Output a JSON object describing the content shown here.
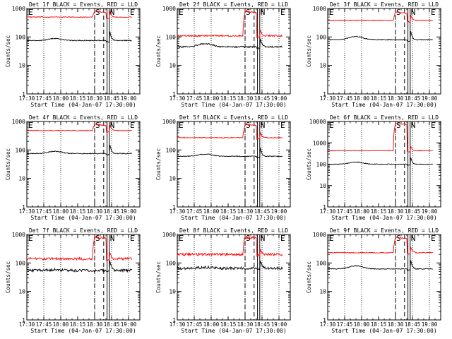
{
  "chart_data": [
    {
      "type": "line",
      "title": "Det 1f BLACK = Events, RED = LLD",
      "xlabel": "Start Time (04-Jan-07 17:30:00)",
      "ylabel": "Counts/sec",
      "yscale": "log",
      "ylim": [
        1,
        1000
      ],
      "xticks": [
        "17:30",
        "17:45",
        "18:00",
        "18:15",
        "18:30",
        "18:45",
        "19:00"
      ],
      "yticks": [
        "1",
        "10",
        "100",
        "1000"
      ],
      "markers": {
        "E_left": "E",
        "S": "S",
        "N": "N",
        "E_right": "E"
      },
      "lld_level": 500,
      "lld_flare_peak": 800,
      "events_level": 75,
      "events_bump": 18,
      "noise": "low",
      "series": [
        {
          "name": "BLACK = Events",
          "color": "#000000"
        },
        {
          "name": "RED = LLD",
          "color": "#ff0000"
        }
      ]
    },
    {
      "type": "line",
      "title": "Det 2f BLACK = Events, RED = LLD",
      "xlabel": "Start Time (04-Jan-07 17:30:00)",
      "ylabel": "Counts/sec",
      "yscale": "log",
      "ylim": [
        1,
        1000
      ],
      "xticks": [
        "17:30",
        "17:45",
        "18:00",
        "18:15",
        "18:30",
        "18:45",
        "19:00"
      ],
      "yticks": [
        "1",
        "10",
        "100",
        "1000"
      ],
      "markers": {
        "E_left": "E",
        "S": "S",
        "N": "N",
        "E_right": "E"
      },
      "lld_level": 110,
      "lld_flare_peak": 800,
      "events_level": 45,
      "events_bump": 30,
      "noise": "medium",
      "series": [
        {
          "name": "BLACK = Events",
          "color": "#000000"
        },
        {
          "name": "RED = LLD",
          "color": "#ff0000"
        }
      ]
    },
    {
      "type": "line",
      "title": "Det 3f BLACK = Events, RED = LLD",
      "xlabel": "Start Time (04-Jan-07 17:30:00)",
      "ylabel": "Counts/sec",
      "yscale": "log",
      "ylim": [
        1,
        1000
      ],
      "xticks": [
        "17:30",
        "17:45",
        "18:00",
        "18:15",
        "18:30",
        "18:45",
        "19:00"
      ],
      "yticks": [
        "1",
        "10",
        "100",
        "1000"
      ],
      "markers": {
        "E_left": "E",
        "S": "S",
        "N": "N",
        "E_right": "E"
      },
      "lld_level": 380,
      "lld_flare_peak": 750,
      "events_level": 80,
      "events_bump": 30,
      "noise": "low",
      "series": [
        {
          "name": "BLACK = Events",
          "color": "#000000"
        },
        {
          "name": "RED = LLD",
          "color": "#ff0000"
        }
      ]
    },
    {
      "type": "line",
      "title": "Det 4f BLACK = Events, RED = LLD",
      "xlabel": "Start Time (04-Jan-07 17:30:00)",
      "ylabel": "Counts/sec",
      "yscale": "log",
      "ylim": [
        1,
        1000
      ],
      "xticks": [
        "17:30",
        "17:45",
        "18:00",
        "18:15",
        "18:30",
        "18:45",
        "19:00"
      ],
      "yticks": [
        "1",
        "10",
        "100",
        "1000"
      ],
      "markers": {
        "E_left": "E",
        "S": "S",
        "N": "N",
        "E_right": "E"
      },
      "lld_level": 480,
      "lld_flare_peak": 800,
      "events_level": 75,
      "events_bump": 20,
      "noise": "low",
      "series": [
        {
          "name": "BLACK = Events",
          "color": "#000000"
        },
        {
          "name": "RED = LLD",
          "color": "#ff0000"
        }
      ]
    },
    {
      "type": "line",
      "title": "Det 5f BLACK = Events, RED = LLD",
      "xlabel": "Start Time (04-Jan-07 17:30:00)",
      "ylabel": "Counts/sec",
      "yscale": "log",
      "ylim": [
        1,
        1000
      ],
      "xticks": [
        "17:30",
        "17:45",
        "18:00",
        "18:15",
        "18:30",
        "18:45",
        "19:00"
      ],
      "yticks": [
        "1",
        "10",
        "100",
        "1000"
      ],
      "markers": {
        "E_left": "E",
        "S": "S",
        "N": "N",
        "E_right": "E"
      },
      "lld_level": 270,
      "lld_flare_peak": 800,
      "events_level": 60,
      "events_bump": 20,
      "noise": "low",
      "series": [
        {
          "name": "BLACK = Events",
          "color": "#000000"
        },
        {
          "name": "RED = LLD",
          "color": "#ff0000"
        }
      ]
    },
    {
      "type": "line",
      "title": "Det 6f BLACK = Events, RED = LLD",
      "xlabel": "Start Time (04-Jan-07 17:30:00)",
      "ylabel": "Counts/sec",
      "yscale": "log",
      "ylim": [
        1,
        10000
      ],
      "xticks": [
        "17:30",
        "17:45",
        "18:00",
        "18:15",
        "18:30",
        "18:45",
        "19:00"
      ],
      "yticks": [
        "1",
        "10",
        "100",
        "1000",
        "10000"
      ],
      "markers": {
        "E_left": "E",
        "S": "S",
        "N": "N",
        "E_right": "E"
      },
      "lld_level": 430,
      "lld_flare_peak": 8000,
      "events_level": 100,
      "events_bump": 25,
      "noise": "low",
      "series": [
        {
          "name": "BLACK = Events",
          "color": "#000000"
        },
        {
          "name": "RED = LLD",
          "color": "#ff0000"
        }
      ]
    },
    {
      "type": "line",
      "title": "Det 7f BLACK = Events, RED = LLD",
      "xlabel": "Start Time (04-Jan-07 17:30:00)",
      "ylabel": "Counts/sec",
      "yscale": "log",
      "ylim": [
        1,
        1000
      ],
      "xticks": [
        "17:30",
        "17:45",
        "18:00",
        "18:15",
        "18:30",
        "18:45",
        "19:00"
      ],
      "yticks": [
        "1",
        "10",
        "100",
        "1000"
      ],
      "markers": {
        "E_left": "E",
        "S": "S",
        "N": "N",
        "E_right": "E"
      },
      "lld_level": 140,
      "lld_flare_peak": 800,
      "events_level": 55,
      "events_bump": 5,
      "noise": "high",
      "series": [
        {
          "name": "BLACK = Events",
          "color": "#000000"
        },
        {
          "name": "RED = LLD",
          "color": "#ff0000"
        }
      ]
    },
    {
      "type": "line",
      "title": "Det 8f BLACK = Events, RED = LLD",
      "xlabel": "Start Time (04-Jan-07 17:30:00)",
      "ylabel": "Counts/sec",
      "yscale": "log",
      "ylim": [
        1,
        1000
      ],
      "xticks": [
        "17:30",
        "17:45",
        "18:00",
        "18:15",
        "18:30",
        "18:45",
        "19:00"
      ],
      "yticks": [
        "1",
        "10",
        "100",
        "1000"
      ],
      "markers": {
        "E_left": "E",
        "S": "S",
        "N": "N",
        "E_right": "E"
      },
      "lld_level": 200,
      "lld_flare_peak": 800,
      "events_level": 65,
      "events_bump": 8,
      "noise": "high",
      "series": [
        {
          "name": "BLACK = Events",
          "color": "#000000"
        },
        {
          "name": "RED = LLD",
          "color": "#ff0000"
        }
      ]
    },
    {
      "type": "line",
      "title": "Det 9f BLACK = Events, RED = LLD",
      "xlabel": "Start Time (04-Jan-07 17:30:00)",
      "ylabel": "Counts/sec",
      "yscale": "log",
      "ylim": [
        1,
        1000
      ],
      "xticks": [
        "17:30",
        "17:45",
        "18:00",
        "18:15",
        "18:30",
        "18:45",
        "19:00"
      ],
      "yticks": [
        "1",
        "10",
        "100",
        "1000"
      ],
      "markers": {
        "E_left": "E",
        "S": "S",
        "N": "N",
        "E_right": "E"
      },
      "lld_level": 230,
      "lld_flare_peak": 800,
      "events_level": 62,
      "events_bump": 28,
      "noise": "low",
      "series": [
        {
          "name": "BLACK = Events",
          "color": "#000000"
        },
        {
          "name": "RED = LLD",
          "color": "#ff0000"
        }
      ]
    }
  ]
}
